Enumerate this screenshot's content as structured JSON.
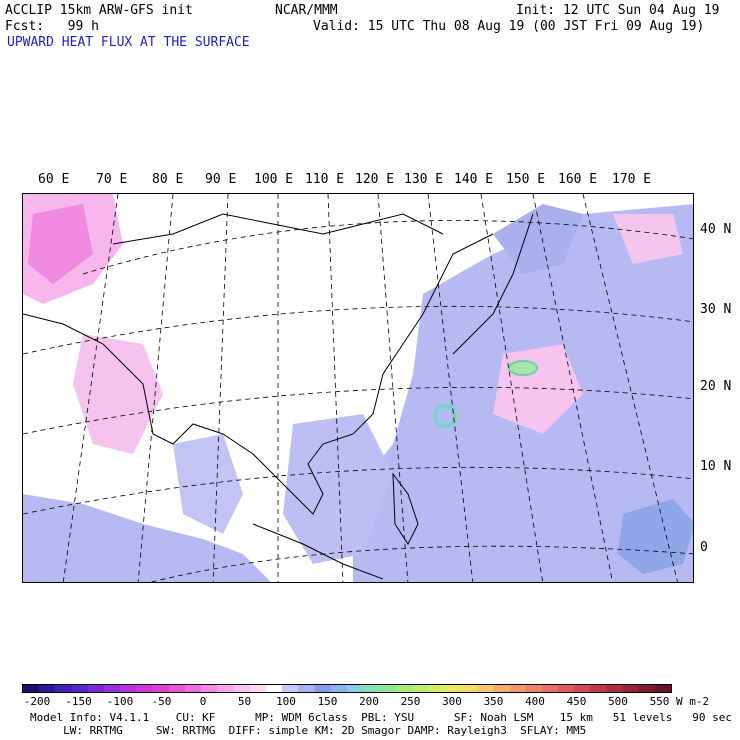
{
  "header": {
    "model": "ACCLIP 15km ARW-GFS init",
    "org": "NCAR/MMM",
    "init": "Init: 12 UTC Sun 04 Aug 19",
    "fcst": "Fcst:   99 h",
    "valid": "Valid: 15 UTC Thu 08 Aug 19 (00 JST Fri 09 Aug 19)",
    "field": "UPWARD HEAT FLUX AT THE SURFACE"
  },
  "map": {
    "lon_labels": [
      "60 E",
      "70 E",
      "80 E",
      "90 E",
      "100 E",
      "110 E",
      "120 E",
      "130 E",
      "140 E",
      "150 E",
      "160 E",
      "170 E"
    ],
    "lat_labels": [
      "40 N",
      "30 N",
      "20 N",
      "10 N",
      "0"
    ]
  },
  "colorbar": {
    "ticks": [
      "-200",
      "-150",
      "-100",
      "-50",
      "0",
      "50",
      "100",
      "150",
      "200",
      "250",
      "300",
      "350",
      "400",
      "450",
      "500",
      "550"
    ],
    "unit": "W m-2",
    "colors": [
      "#14146e",
      "#2a1a9a",
      "#4020b8",
      "#5a24cc",
      "#7a28d8",
      "#9a2ce0",
      "#b830e0",
      "#d034dc",
      "#e23cd6",
      "#ee52d8",
      "#f46cdc",
      "#f888e2",
      "#fba4ea",
      "#fdc0f0",
      "#fedaf6",
      "#ffffff",
      "#c8c8f4",
      "#aab0f0",
      "#8c98ec",
      "#8ab4e4",
      "#88d0dc",
      "#86e0b8",
      "#8ce894",
      "#a2ec7a",
      "#bcee6a",
      "#d4ee62",
      "#e6e862",
      "#f2dc64",
      "#f6c868",
      "#f4b06a",
      "#f29a6a",
      "#ee846a",
      "#e86e66",
      "#e05a60",
      "#d44858",
      "#c4384e",
      "#b02c42",
      "#98223a",
      "#801a30",
      "#681428"
    ]
  },
  "footer": {
    "line1": "Model Info: V4.1.1    CU: KF      MP: WDM 6class  PBL: YSU      SF: Noah LSM    15 km   51 levels   90 sec",
    "line2": "     LW: RRTMG     SW: RRTMG  DIFF: simple KM: 2D Smagor DAMP: Rayleigh3  SFLAY: MM5"
  }
}
